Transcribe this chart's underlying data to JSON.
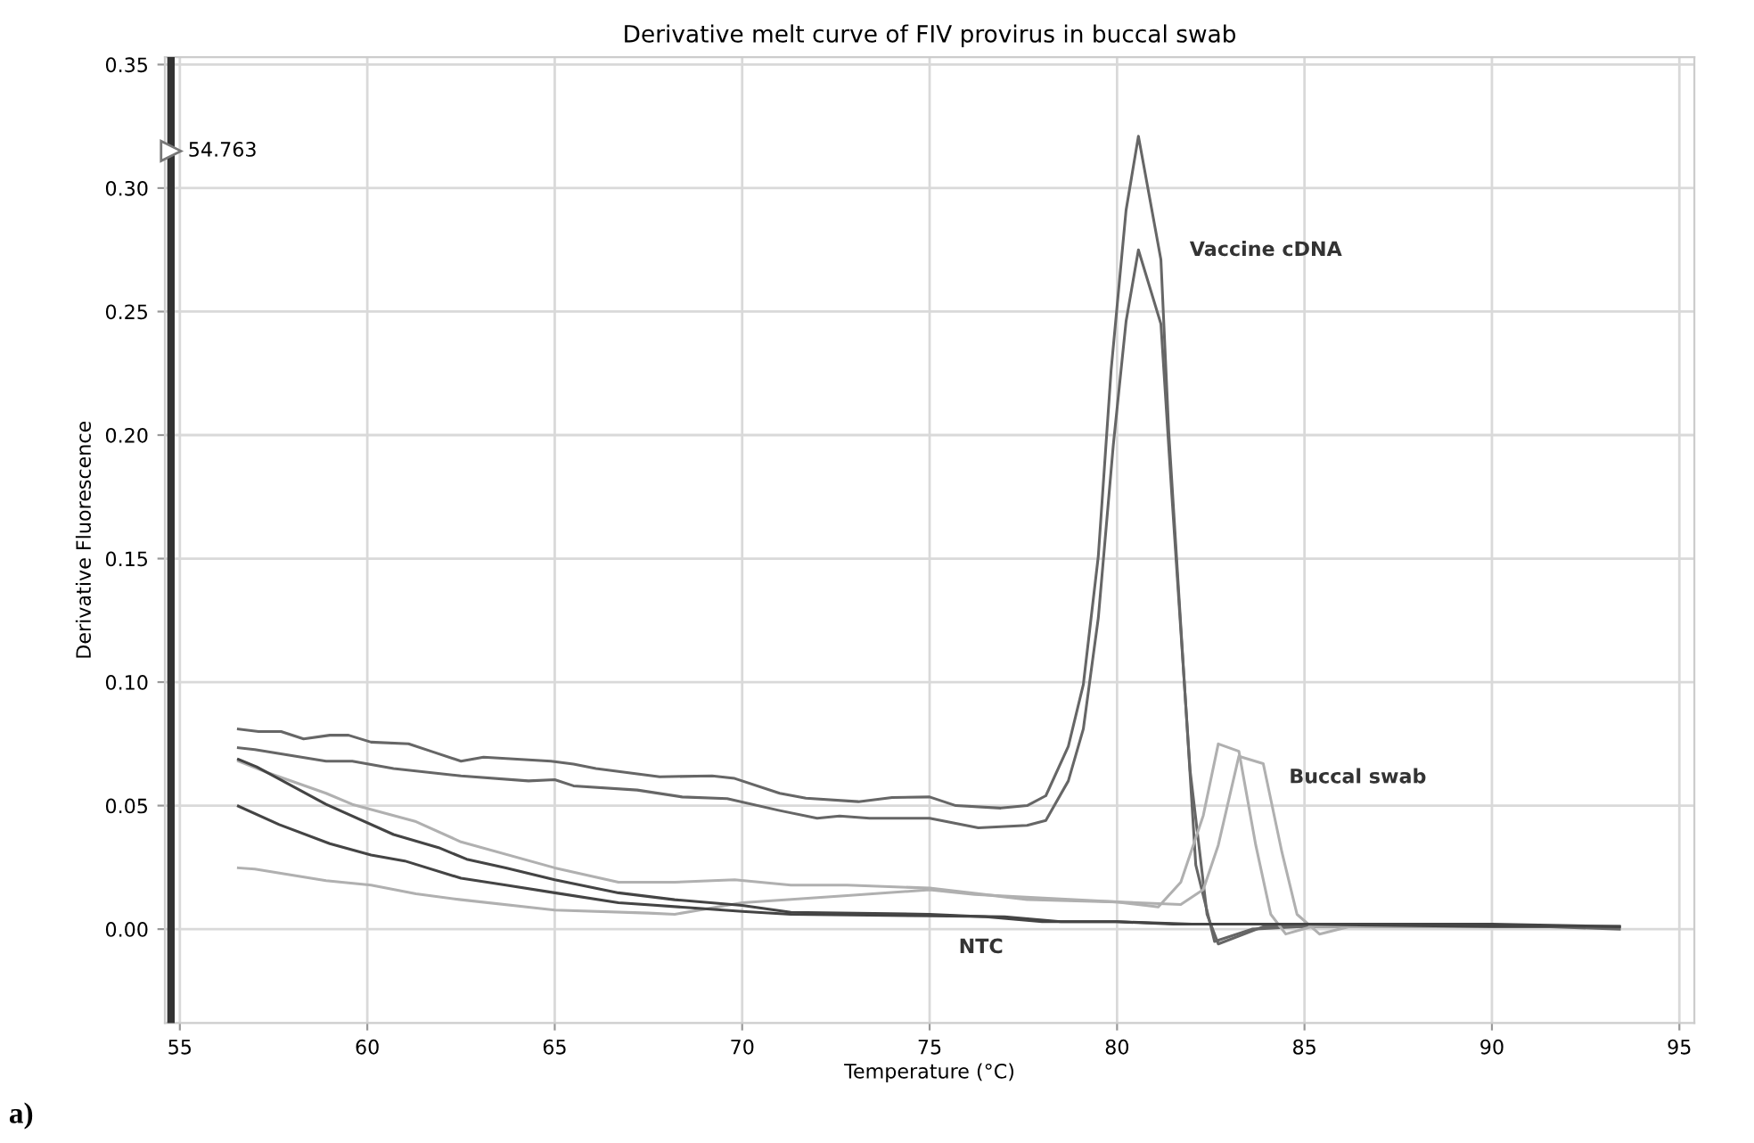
{
  "chart_data": {
    "type": "line",
    "title": "Derivative melt curve of FIV provirus in buccal swab",
    "xlabel": "Temperature (°C)",
    "ylabel": "Derivative Fluorescence",
    "xlim": [
      54.6,
      95.4
    ],
    "ylim": [
      -0.038,
      0.353
    ],
    "xticks": [
      55,
      60,
      65,
      70,
      75,
      80,
      85,
      90,
      95
    ],
    "yticks": [
      {
        "value": 0,
        "label": "0.00"
      },
      {
        "value": 0.05,
        "label": "0.05"
      },
      {
        "value": 0.1,
        "label": "0.10"
      },
      {
        "value": 0.15,
        "label": "0.15"
      },
      {
        "value": 0.2,
        "label": "0.20"
      },
      {
        "value": 0.25,
        "label": "0.25"
      },
      {
        "value": 0.3,
        "label": "0.30"
      },
      {
        "value": 0.35,
        "label": "0.35"
      }
    ],
    "grid": true,
    "legend": false,
    "marker": "none",
    "line_style": "solid",
    "ref_lines": [
      {
        "axis": "x",
        "value": 54.763,
        "label": "54.763",
        "color": "#333333"
      }
    ],
    "series": [
      {
        "color": "#666666",
        "x": [
          56.56,
          57.1,
          57.7,
          58.3,
          59.0,
          59.5,
          60.1,
          61.1,
          61.7,
          62.5,
          63.1,
          64.9,
          65.5,
          66.1,
          67.8,
          69.2,
          69.8,
          71.0,
          71.7,
          73.1,
          74.0,
          75.0,
          75.7,
          76.9,
          77.6,
          78.1,
          78.7,
          79.1,
          79.5,
          79.84,
          80.24,
          80.57,
          81.17,
          81.38,
          81.79,
          82.1,
          82.6,
          83.6,
          84.9,
          88.1,
          91.4,
          93.4
        ],
        "values": [
          0.081,
          0.08,
          0.08,
          0.077,
          0.0785,
          0.0785,
          0.0757,
          0.075,
          0.072,
          0.068,
          0.0696,
          0.068,
          0.0668,
          0.065,
          0.0617,
          0.062,
          0.061,
          0.055,
          0.053,
          0.0516,
          0.0533,
          0.0535,
          0.05,
          0.049,
          0.05,
          0.054,
          0.074,
          0.099,
          0.151,
          0.226,
          0.291,
          0.321,
          0.271,
          0.201,
          0.101,
          0.026,
          -0.005,
          0.0,
          0.001,
          0.001,
          0.001,
          0.0
        ]
      },
      {
        "color": "#666666",
        "x": [
          56.56,
          57.0,
          57.95,
          58.9,
          59.6,
          60.7,
          62.5,
          64.3,
          65.0,
          65.5,
          67.2,
          68.4,
          69.6,
          71.0,
          72.0,
          72.6,
          73.4,
          75.0,
          76.3,
          77.6,
          78.1,
          78.7,
          79.1,
          79.5,
          79.9,
          80.24,
          80.57,
          81.17,
          81.46,
          81.95,
          82.4,
          82.7,
          83.9,
          88.0,
          93.4
        ],
        "values": [
          0.0734,
          0.0727,
          0.0703,
          0.068,
          0.068,
          0.065,
          0.062,
          0.06,
          0.0605,
          0.058,
          0.0563,
          0.0535,
          0.0528,
          0.048,
          0.0449,
          0.0458,
          0.0449,
          0.0449,
          0.041,
          0.042,
          0.044,
          0.06,
          0.081,
          0.126,
          0.196,
          0.246,
          0.275,
          0.245,
          0.176,
          0.064,
          0.006,
          -0.006,
          0.001,
          0.001,
          0.001
        ]
      },
      {
        "color": "#b0b0b0",
        "x": [
          56.56,
          57.35,
          58.9,
          59.6,
          61.3,
          62.5,
          65.0,
          66.7,
          68.2,
          69.8,
          71.3,
          72.8,
          75.0,
          77.6,
          80.0,
          81.1,
          81.7,
          82.3,
          82.7,
          83.25,
          83.7,
          84.1,
          84.5,
          85.2,
          90.0,
          93.4
        ],
        "values": [
          0.068,
          0.0633,
          0.055,
          0.0505,
          0.0435,
          0.0353,
          0.0248,
          0.019,
          0.019,
          0.02,
          0.0178,
          0.0178,
          0.0166,
          0.012,
          0.011,
          0.009,
          0.019,
          0.046,
          0.075,
          0.072,
          0.034,
          0.006,
          -0.002,
          0.001,
          0.001,
          0.001
        ]
      },
      {
        "color": "#b0b0b0",
        "x": [
          56.56,
          57.0,
          58.9,
          60.1,
          61.3,
          62.5,
          65.0,
          67.5,
          68.2,
          70.0,
          72.8,
          75.0,
          76.2,
          80.0,
          81.7,
          82.3,
          82.7,
          83.25,
          83.9,
          84.4,
          84.8,
          85.4,
          86.2,
          93.4
        ],
        "values": [
          0.0248,
          0.0243,
          0.0196,
          0.0178,
          0.0143,
          0.0119,
          0.0077,
          0.0065,
          0.006,
          0.0107,
          0.0136,
          0.0159,
          0.014,
          0.011,
          0.01,
          0.016,
          0.034,
          0.07,
          0.067,
          0.031,
          0.006,
          -0.002,
          0.001,
          0.001
        ]
      },
      {
        "color": "#444444",
        "x": [
          56.56,
          57.05,
          58.9,
          60.7,
          61.9,
          62.65,
          63.7,
          65.0,
          66.7,
          68.2,
          70.0,
          71.3,
          75.0,
          76.5,
          78.0,
          80.0,
          81.5,
          85.0,
          90.0,
          93.4
        ],
        "values": [
          0.0687,
          0.0657,
          0.0505,
          0.0383,
          0.033,
          0.0283,
          0.0248,
          0.02,
          0.0147,
          0.0119,
          0.0096,
          0.0068,
          0.006,
          0.005,
          0.003,
          0.003,
          0.002,
          0.002,
          0.002,
          0.001
        ]
      },
      {
        "color": "#444444",
        "x": [
          56.56,
          57.65,
          59.0,
          60.1,
          61.0,
          62.5,
          63.7,
          65.0,
          66.7,
          70.0,
          71.3,
          75.0,
          77.0,
          78.5,
          80.0,
          82.0,
          85.0,
          90.0,
          93.4
        ],
        "values": [
          0.0498,
          0.0423,
          0.0346,
          0.03,
          0.0276,
          0.0206,
          0.0178,
          0.0147,
          0.0107,
          0.0072,
          0.006,
          0.0054,
          0.005,
          0.003,
          0.003,
          0.002,
          0.002,
          0.001,
          0.001
        ]
      }
    ],
    "annotations": [
      "Vaccine cDNA",
      "Buccal swab",
      "NTC",
      "a)"
    ]
  }
}
